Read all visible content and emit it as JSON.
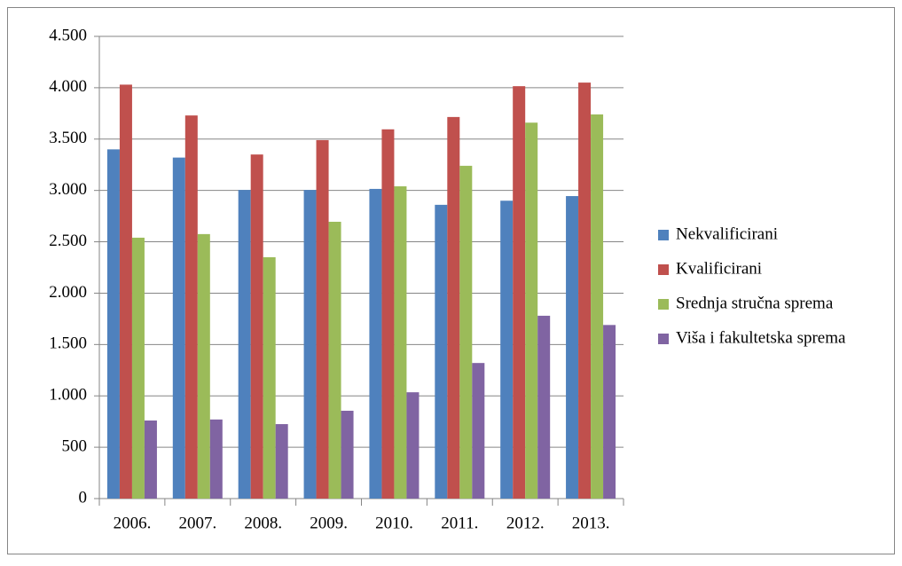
{
  "chart_data": {
    "type": "bar",
    "categories": [
      "2006.",
      "2007.",
      "2008.",
      "2009.",
      "2010.",
      "2011.",
      "2012.",
      "2013."
    ],
    "series": [
      {
        "name": "Nekvalificirani",
        "color": "#4f81bd",
        "values": [
          3400,
          3320,
          3005,
          3005,
          3015,
          2860,
          2900,
          2945
        ]
      },
      {
        "name": "Kvalificirani",
        "color": "#c0504d",
        "values": [
          4030,
          3730,
          3350,
          3490,
          3595,
          3715,
          4015,
          4050
        ]
      },
      {
        "name": "Srednja stručna sprema",
        "color": "#9bbb59",
        "values": [
          2540,
          2575,
          2350,
          2695,
          3040,
          3240,
          3660,
          3740
        ]
      },
      {
        "name": "Viša i fakultetska sprema",
        "color": "#8064a2",
        "values": [
          760,
          770,
          725,
          855,
          1035,
          1320,
          1780,
          1690
        ]
      }
    ],
    "ylim": [
      0,
      4500
    ],
    "yticks": [
      0,
      {
        "value": 500,
        "label": "500"
      },
      {
        "value": 1000,
        "label": "1.000"
      },
      {
        "value": 1500,
        "label": "1.500"
      },
      {
        "value": 2000,
        "label": "2.000"
      },
      {
        "value": 2500,
        "label": "2.500"
      },
      {
        "value": 3000,
        "label": "3.000"
      },
      {
        "value": 3500,
        "label": "3.500"
      },
      {
        "value": 4000,
        "label": "4.000"
      },
      {
        "value": 4500,
        "label": "4.500"
      }
    ],
    "grid": true,
    "legend": "right"
  }
}
